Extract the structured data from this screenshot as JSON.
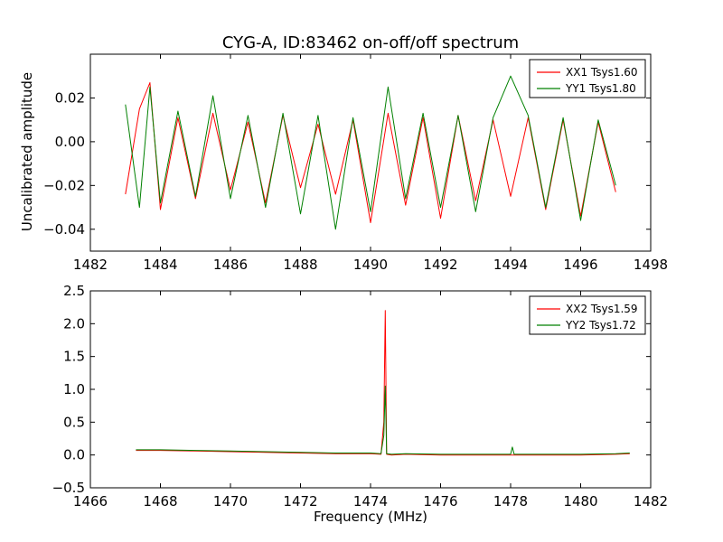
{
  "title": "CYG-A, ID:83462 on-off/off spectrum",
  "ylabel": "Uncalibrated amplitude",
  "xlabel": "Frequency (MHz)",
  "chart_data": [
    {
      "type": "line",
      "xlim": [
        1482,
        1498
      ],
      "ylim": [
        -0.05,
        0.04
      ],
      "xticks": [
        "1482",
        "1484",
        "1486",
        "1488",
        "1490",
        "1492",
        "1494",
        "1496",
        "1498"
      ],
      "yticks": [
        "−0.04",
        "−0.02",
        "0.00",
        "0.02"
      ],
      "legend_position": "top-right",
      "series": [
        {
          "name": "XX1 Tsys1.60",
          "color": "#ff0000",
          "x": [
            1483.0,
            1483.4,
            1483.7,
            1484.0,
            1484.5,
            1485.0,
            1485.5,
            1486.0,
            1486.5,
            1487.0,
            1487.5,
            1488.0,
            1488.5,
            1489.0,
            1489.5,
            1490.0,
            1490.5,
            1491.0,
            1491.5,
            1492.0,
            1492.5,
            1493.0,
            1493.5,
            1494.0,
            1494.5,
            1495.0,
            1495.5,
            1496.0,
            1496.5,
            1497.0
          ],
          "y": [
            -0.024,
            0.015,
            0.027,
            -0.031,
            0.011,
            -0.026,
            0.013,
            -0.022,
            0.009,
            -0.028,
            0.012,
            -0.021,
            0.008,
            -0.024,
            0.01,
            -0.037,
            0.013,
            -0.029,
            0.011,
            -0.035,
            0.012,
            -0.027,
            0.01,
            -0.025,
            0.011,
            -0.031,
            0.01,
            -0.034,
            0.009,
            -0.023
          ]
        },
        {
          "name": "YY1 Tsys1.80",
          "color": "#008000",
          "x": [
            1483.0,
            1483.4,
            1483.7,
            1484.0,
            1484.5,
            1485.0,
            1485.5,
            1486.0,
            1486.5,
            1487.0,
            1487.5,
            1488.0,
            1488.5,
            1489.0,
            1489.5,
            1490.0,
            1490.5,
            1491.0,
            1491.5,
            1492.0,
            1492.5,
            1493.0,
            1493.5,
            1494.0,
            1494.5,
            1495.0,
            1495.5,
            1496.0,
            1496.5,
            1497.0
          ],
          "y": [
            0.017,
            -0.03,
            0.025,
            -0.028,
            0.014,
            -0.025,
            0.021,
            -0.026,
            0.012,
            -0.03,
            0.013,
            -0.033,
            0.012,
            -0.04,
            0.011,
            -0.032,
            0.025,
            -0.026,
            0.013,
            -0.03,
            0.012,
            -0.032,
            0.011,
            0.03,
            0.012,
            -0.03,
            0.011,
            -0.036,
            0.01,
            -0.02
          ]
        }
      ]
    },
    {
      "type": "line",
      "xlim": [
        1466,
        1482
      ],
      "ylim": [
        -0.5,
        2.5
      ],
      "xticks": [
        "1466",
        "1468",
        "1470",
        "1472",
        "1474",
        "1476",
        "1478",
        "1480",
        "1482"
      ],
      "yticks": [
        "−0.5",
        "0.0",
        "0.5",
        "1.0",
        "1.5",
        "2.0",
        "2.5"
      ],
      "legend_position": "top-right",
      "series": [
        {
          "name": "XX2 Tsys1.59",
          "color": "#ff0000",
          "x": [
            1467.3,
            1468.0,
            1469.0,
            1470.0,
            1471.0,
            1472.0,
            1473.0,
            1474.0,
            1474.3,
            1474.38,
            1474.42,
            1474.46,
            1474.6,
            1475.0,
            1476.0,
            1477.0,
            1478.0,
            1479.0,
            1480.0,
            1481.0,
            1481.4
          ],
          "y": [
            0.07,
            0.07,
            0.06,
            0.05,
            0.04,
            0.03,
            0.02,
            0.02,
            0.01,
            0.5,
            2.2,
            0.01,
            0.0,
            0.01,
            0.0,
            0.0,
            0.0,
            0.0,
            0.0,
            0.01,
            0.02
          ]
        },
        {
          "name": "YY2 Tsys1.72",
          "color": "#008000",
          "x": [
            1467.3,
            1468.0,
            1469.0,
            1470.0,
            1471.0,
            1472.0,
            1473.0,
            1474.0,
            1474.3,
            1474.38,
            1474.42,
            1474.46,
            1474.6,
            1475.0,
            1476.0,
            1477.0,
            1478.0,
            1478.05,
            1478.1,
            1479.0,
            1480.0,
            1481.0,
            1481.4
          ],
          "y": [
            0.08,
            0.08,
            0.07,
            0.06,
            0.05,
            0.04,
            0.03,
            0.03,
            0.02,
            0.3,
            1.05,
            0.02,
            0.01,
            0.02,
            0.01,
            0.01,
            0.01,
            0.12,
            0.01,
            0.01,
            0.01,
            0.02,
            0.03
          ]
        }
      ]
    }
  ]
}
